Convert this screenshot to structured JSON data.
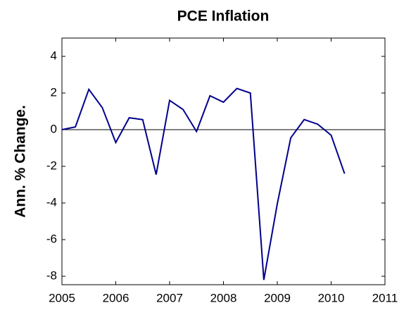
{
  "chart_data": {
    "type": "line",
    "title": "PCE Inflation",
    "ylabel": "Ann. % Change.",
    "x": [
      2005,
      2005.25,
      2005.5,
      2005.75,
      2006,
      2006.25,
      2006.5,
      2006.75,
      2007,
      2007.25,
      2007.5,
      2007.75,
      2008,
      2008.25,
      2008.5,
      2008.75,
      2009,
      2009.25,
      2009.5,
      2009.75,
      2010,
      2010.25
    ],
    "series": [
      {
        "name": "PCE Inflation",
        "color": "#00008b",
        "values": [
          0,
          0.15,
          2.2,
          1.2,
          -0.7,
          0.65,
          0.55,
          -2.45,
          1.6,
          1.1,
          -0.1,
          1.85,
          1.5,
          2.25,
          2.0,
          -8.2,
          -4.05,
          -0.45,
          0.55,
          0.3,
          -0.3,
          -2.4
        ]
      }
    ],
    "xlim": [
      2005,
      2011
    ],
    "xticks": [
      2005,
      2006,
      2007,
      2008,
      2009,
      2010,
      2011
    ],
    "ylim": [
      -8.46,
      5
    ],
    "yticks": [
      -8,
      -6,
      -4,
      -2,
      0,
      2,
      4
    ],
    "zero_line": true
  }
}
